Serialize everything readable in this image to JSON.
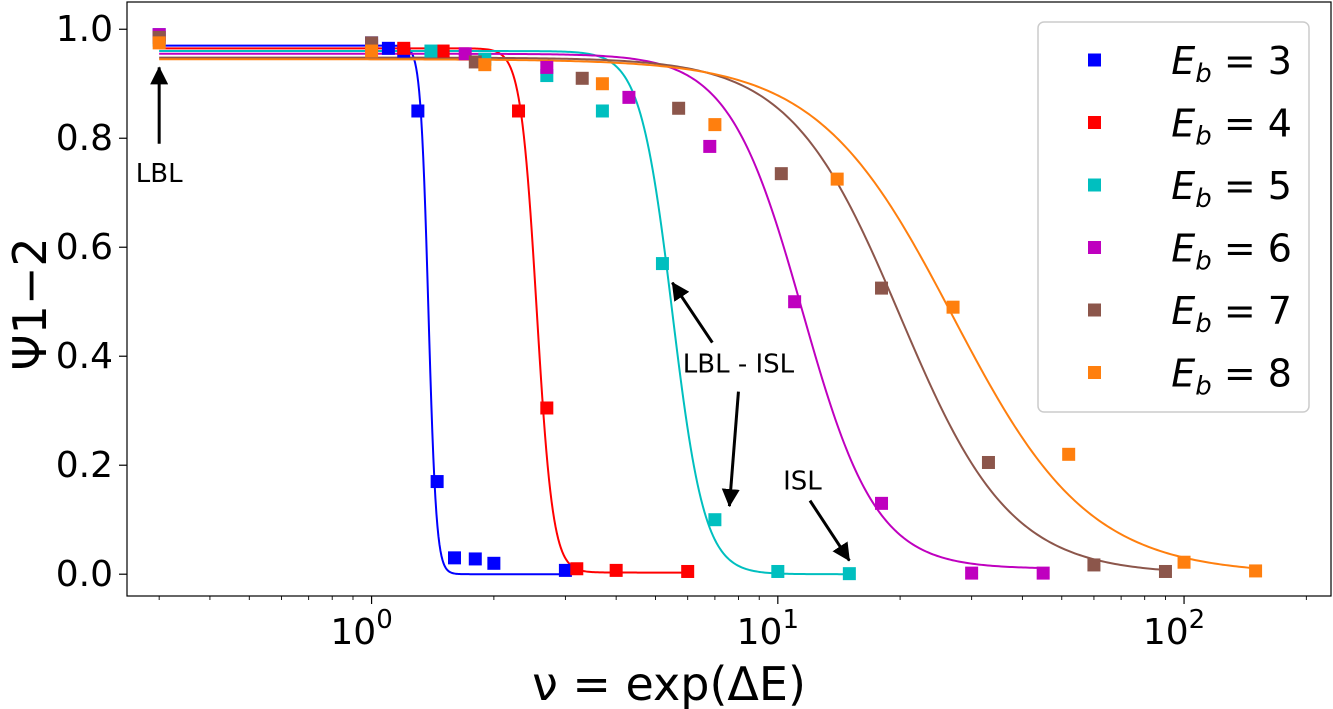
{
  "chart_data": {
    "type": "scatter",
    "title": "",
    "xlabel": "ν = exp(ΔE)",
    "ylabel": "Ψ1−2",
    "xscale": "log",
    "xlim": [
      0.25,
      230
    ],
    "ylim": [
      -0.04,
      1.05
    ],
    "x_ticks": [
      {
        "value": 1,
        "base": "10",
        "exp": "0"
      },
      {
        "value": 10,
        "base": "10",
        "exp": "1"
      },
      {
        "value": 100,
        "base": "10",
        "exp": "2"
      }
    ],
    "y_ticks": [
      {
        "value": 0.0,
        "label": "0.0"
      },
      {
        "value": 0.2,
        "label": "0.2"
      },
      {
        "value": 0.4,
        "label": "0.4"
      },
      {
        "value": 0.6,
        "label": "0.6"
      },
      {
        "value": 0.8,
        "label": "0.8"
      },
      {
        "value": 1.0,
        "label": "1.0"
      }
    ],
    "legend_position": "top-right",
    "series": [
      {
        "name": "E_b = 3",
        "label_var": "E",
        "label_sub": "b",
        "label_rest": " = 3",
        "color": "#0000ff",
        "points": [
          [
            0.3,
            0.99
          ],
          [
            1.0,
            0.975
          ],
          [
            1.1,
            0.965
          ],
          [
            1.2,
            0.96
          ],
          [
            1.3,
            0.85
          ],
          [
            1.45,
            0.17
          ],
          [
            1.6,
            0.03
          ],
          [
            1.8,
            0.028
          ],
          [
            2.0,
            0.02
          ],
          [
            3.0,
            0.007
          ]
        ],
        "fit": {
          "high": 0.97,
          "low": 0.0,
          "x0": 1.38,
          "k": 45,
          "xmin": 0.3,
          "xmax": 3.0
        }
      },
      {
        "name": "E_b = 4",
        "label_var": "E",
        "label_sub": "b",
        "label_rest": " = 4",
        "color": "#ff0000",
        "points": [
          [
            0.3,
            0.985
          ],
          [
            1.2,
            0.965
          ],
          [
            1.5,
            0.96
          ],
          [
            2.3,
            0.85
          ],
          [
            2.7,
            0.305
          ],
          [
            3.2,
            0.01
          ],
          [
            4.0,
            0.007
          ],
          [
            6.0,
            0.005
          ]
        ],
        "fit": {
          "high": 0.965,
          "low": 0.003,
          "x0": 2.55,
          "k": 22,
          "xmin": 0.3,
          "xmax": 6.0
        }
      },
      {
        "name": "E_b = 5",
        "label_var": "E",
        "label_sub": "b",
        "label_rest": " = 5",
        "color": "#00bfbf",
        "points": [
          [
            0.3,
            0.98
          ],
          [
            1.4,
            0.96
          ],
          [
            1.9,
            0.945
          ],
          [
            2.7,
            0.915
          ],
          [
            3.7,
            0.85
          ],
          [
            5.2,
            0.57
          ],
          [
            7.0,
            0.1
          ],
          [
            10.0,
            0.005
          ],
          [
            15.0,
            0.001
          ]
        ],
        "fit": {
          "high": 0.96,
          "low": 0.0,
          "x0": 5.5,
          "k": 11,
          "xmin": 0.3,
          "xmax": 15.0
        }
      },
      {
        "name": "E_b = 6",
        "label_var": "E",
        "label_sub": "b",
        "label_rest": " = 6",
        "color": "#bf00bf",
        "points": [
          [
            0.3,
            0.99
          ],
          [
            1.0,
            0.97
          ],
          [
            1.7,
            0.955
          ],
          [
            2.7,
            0.93
          ],
          [
            4.3,
            0.875
          ],
          [
            6.8,
            0.785
          ],
          [
            11.0,
            0.5
          ],
          [
            18.0,
            0.13
          ],
          [
            30.0,
            0.002
          ],
          [
            45.0,
            0.002
          ]
        ],
        "fit": {
          "high": 0.955,
          "low": 0.01,
          "x0": 11.5,
          "k": 4.8,
          "xmin": 0.3,
          "xmax": 45.0
        }
      },
      {
        "name": "E_b = 7",
        "label_var": "E",
        "label_sub": "b",
        "label_rest": " = 7",
        "color": "#8c564b",
        "points": [
          [
            0.3,
            0.985
          ],
          [
            1.0,
            0.975
          ],
          [
            1.8,
            0.94
          ],
          [
            3.3,
            0.91
          ],
          [
            5.7,
            0.855
          ],
          [
            10.2,
            0.735
          ],
          [
            18.0,
            0.525
          ],
          [
            33.0,
            0.205
          ],
          [
            60.0,
            0.017
          ],
          [
            90.0,
            0.005
          ]
        ],
        "fit": {
          "high": 0.948,
          "low": 0.0,
          "x0": 20.0,
          "k": 3.2,
          "xmin": 0.3,
          "xmax": 90.0
        }
      },
      {
        "name": "E_b = 8",
        "label_var": "E",
        "label_sub": "b",
        "label_rest": " = 8",
        "color": "#ff7f0e",
        "points": [
          [
            0.3,
            0.975
          ],
          [
            1.0,
            0.96
          ],
          [
            1.9,
            0.935
          ],
          [
            3.7,
            0.9
          ],
          [
            7.0,
            0.825
          ],
          [
            14.0,
            0.725
          ],
          [
            27.0,
            0.49
          ],
          [
            52.0,
            0.22
          ],
          [
            100.0,
            0.022
          ],
          [
            150.0,
            0.006
          ]
        ],
        "fit": {
          "high": 0.945,
          "low": 0.0,
          "x0": 27.0,
          "k": 2.6,
          "xmin": 0.3,
          "xmax": 150.0
        }
      }
    ],
    "annotations": [
      {
        "text": "LBL",
        "text_x": 0.3,
        "text_y": 0.72,
        "arrows": [
          {
            "from": [
              0.3,
              0.79
            ],
            "to": [
              0.3,
              0.93
            ]
          }
        ]
      },
      {
        "text": "LBL - ISL",
        "text_x": 8.0,
        "text_y": 0.37,
        "arrows": [
          {
            "from": [
              6.9,
              0.425
            ],
            "to": [
              5.5,
              0.535
            ]
          },
          {
            "from": [
              8.0,
              0.335
            ],
            "to": [
              7.6,
              0.125
            ]
          }
        ]
      },
      {
        "text": "ISL",
        "text_x": 11.5,
        "text_y": 0.155,
        "arrows": [
          {
            "from": [
              12.0,
              0.135
            ],
            "to": [
              15.0,
              0.025
            ]
          }
        ]
      }
    ]
  }
}
